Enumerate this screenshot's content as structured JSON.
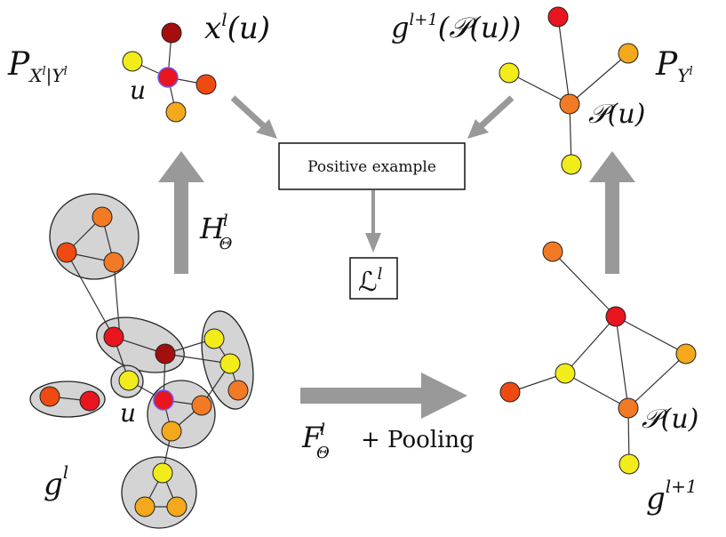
{
  "labels": {
    "p_x_given_y": "P",
    "p_x_given_y_sub": "X",
    "p_x_given_y_sub_sup1": "l",
    "p_x_given_y_sub_bar": "|Y",
    "p_x_given_y_sub_sup2": "l",
    "x_base": "x",
    "x_sup": "l",
    "x_arg": "(u)",
    "u_top": "u",
    "g_next_base": "g",
    "g_next_sup": "l+1",
    "g_next_arg": "(𝒫(u))",
    "p_y": "P",
    "p_y_sub": "Y",
    "p_y_sub_sup": "l",
    "pu_top": "𝒫(u)",
    "positive_example": "Positive example",
    "h_base": "H",
    "h_sub": "Θ",
    "h_sup": "l",
    "loss_base": "ℒ",
    "loss_sup": "l",
    "f_base": "F",
    "f_sub": "Θ",
    "f_sup": "l",
    "f_pooling": "+ Pooling",
    "u_bottom": "u",
    "g_l_base": "g",
    "g_l_sup": "l",
    "pu_bottom": "𝒫(u)",
    "g_l1_base": "g",
    "g_l1_sup": "l+1"
  },
  "colors": {
    "dark_red": "#a50e0e",
    "red": "#e8141e",
    "orange_red": "#ef4a12",
    "orange": "#f27a25",
    "amber": "#f4a81c",
    "yellow": "#f2ec1a",
    "cluster_fill": "#d4d4d4",
    "arrow": "#999999"
  }
}
